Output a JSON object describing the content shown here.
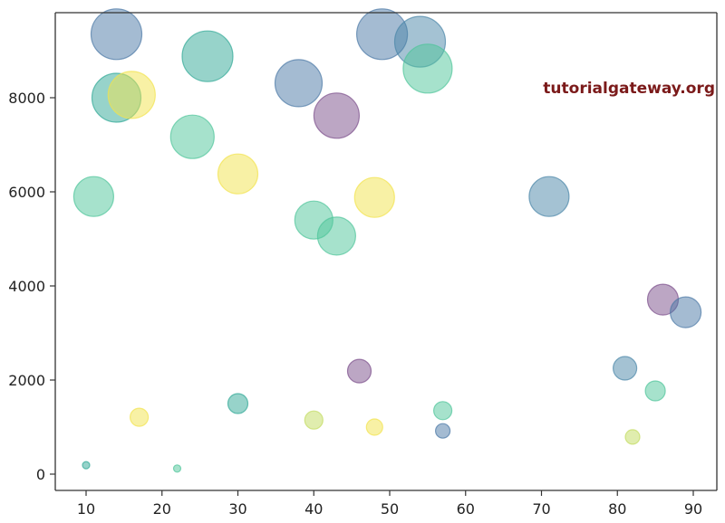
{
  "watermark": "tutorialgateway.org",
  "colors": {
    "purple": "#7a4d8a",
    "blue": "#4a77a5",
    "steelblue": "#4a86a8",
    "teal": "#2fa896",
    "green": "#4ec59a",
    "yellowgreen": "#c2dc5e",
    "yellow": "#f2e34c",
    "watermark": "#7b1a1a",
    "axis": "#333333"
  },
  "chart_data": {
    "type": "scatter",
    "title": "",
    "xlabel": "",
    "ylabel": "",
    "xlim": [
      6,
      93
    ],
    "ylim": [
      -350,
      9800
    ],
    "x_ticks": [
      10,
      20,
      30,
      40,
      50,
      60,
      70,
      80,
      90
    ],
    "y_ticks": [
      0,
      2000,
      4000,
      6000,
      8000
    ],
    "x_tick_labels": [
      "10",
      "20",
      "30",
      "40",
      "50",
      "60",
      "70",
      "80",
      "90"
    ],
    "y_tick_labels": [
      "0",
      "2000",
      "4000",
      "6000",
      "8000"
    ],
    "grid": false,
    "legend": null,
    "alpha": 0.5,
    "colormap": "viridis",
    "points": [
      {
        "x": 10,
        "y": 190,
        "size": 4,
        "color": "teal"
      },
      {
        "x": 22,
        "y": 120,
        "size": 4,
        "color": "green"
      },
      {
        "x": 17,
        "y": 1210,
        "size": 10,
        "color": "yellow"
      },
      {
        "x": 30,
        "y": 1500,
        "size": 11,
        "color": "teal"
      },
      {
        "x": 40,
        "y": 1150,
        "size": 10,
        "color": "yellowgreen"
      },
      {
        "x": 48,
        "y": 1000,
        "size": 9,
        "color": "yellow"
      },
      {
        "x": 46,
        "y": 2190,
        "size": 13,
        "color": "purple"
      },
      {
        "x": 57,
        "y": 1350,
        "size": 10,
        "color": "green"
      },
      {
        "x": 57,
        "y": 920,
        "size": 8,
        "color": "blue"
      },
      {
        "x": 81,
        "y": 2250,
        "size": 13,
        "color": "steelblue"
      },
      {
        "x": 85,
        "y": 1770,
        "size": 11,
        "color": "green"
      },
      {
        "x": 82,
        "y": 790,
        "size": 8,
        "color": "yellowgreen"
      },
      {
        "x": 86,
        "y": 3710,
        "size": 17,
        "color": "purple"
      },
      {
        "x": 89,
        "y": 3440,
        "size": 17,
        "color": "blue"
      },
      {
        "x": 71,
        "y": 5900,
        "size": 22,
        "color": "steelblue"
      },
      {
        "x": 11,
        "y": 5900,
        "size": 22,
        "color": "green"
      },
      {
        "x": 30,
        "y": 6380,
        "size": 22,
        "color": "yellow"
      },
      {
        "x": 40,
        "y": 5400,
        "size": 21,
        "color": "green"
      },
      {
        "x": 43,
        "y": 5060,
        "size": 21,
        "color": "green"
      },
      {
        "x": 48,
        "y": 5880,
        "size": 22,
        "color": "yellow"
      },
      {
        "x": 24,
        "y": 7170,
        "size": 24,
        "color": "green"
      },
      {
        "x": 43,
        "y": 7620,
        "size": 25,
        "color": "purple"
      },
      {
        "x": 38,
        "y": 8310,
        "size": 26,
        "color": "blue"
      },
      {
        "x": 14,
        "y": 8000,
        "size": 27,
        "color": "teal"
      },
      {
        "x": 16,
        "y": 8060,
        "size": 26,
        "color": "yellow"
      },
      {
        "x": 26,
        "y": 8880,
        "size": 28,
        "color": "teal"
      },
      {
        "x": 14,
        "y": 9350,
        "size": 28,
        "color": "blue"
      },
      {
        "x": 49,
        "y": 9350,
        "size": 28,
        "color": "blue"
      },
      {
        "x": 54,
        "y": 9190,
        "size": 28,
        "color": "steelblue"
      },
      {
        "x": 55,
        "y": 8620,
        "size": 27,
        "color": "green"
      }
    ]
  }
}
